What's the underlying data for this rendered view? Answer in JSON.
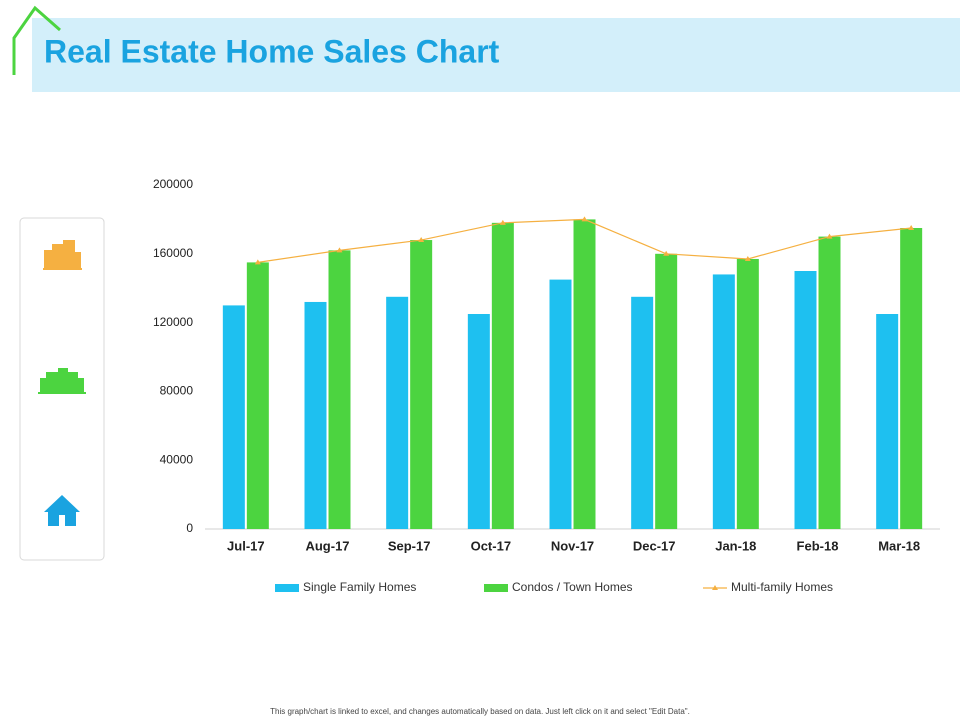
{
  "chart_data": {
    "type": "bar",
    "title": "Real Estate Home Sales Chart",
    "categories": [
      "Jul-17",
      "Aug-17",
      "Sep-17",
      "Oct-17",
      "Nov-17",
      "Dec-17",
      "Jan-18",
      "Feb-18",
      "Mar-18"
    ],
    "series": [
      {
        "name": "Single Family Homes",
        "type": "bar",
        "color": "#1ec0f0",
        "values": [
          130000,
          132000,
          135000,
          125000,
          145000,
          135000,
          148000,
          150000,
          125000
        ]
      },
      {
        "name": "Condos / Town Homes",
        "type": "bar",
        "color": "#4cd440",
        "values": [
          155000,
          162000,
          168000,
          178000,
          180000,
          160000,
          157000,
          170000,
          175000
        ]
      },
      {
        "name": "Multi-family Homes",
        "type": "line",
        "color": "#f5b041",
        "values": [
          155000,
          162000,
          168000,
          178000,
          180000,
          160000,
          157000,
          170000,
          175000
        ]
      }
    ],
    "ylim": [
      0,
      200000
    ],
    "yticks": [
      0,
      40000,
      80000,
      120000,
      160000,
      200000
    ],
    "grid": false,
    "legend": "bottom"
  },
  "footnote": "This graph/chart is linked to excel, and changes automatically based on data. Just left click on it and select \"Edit Data\"."
}
